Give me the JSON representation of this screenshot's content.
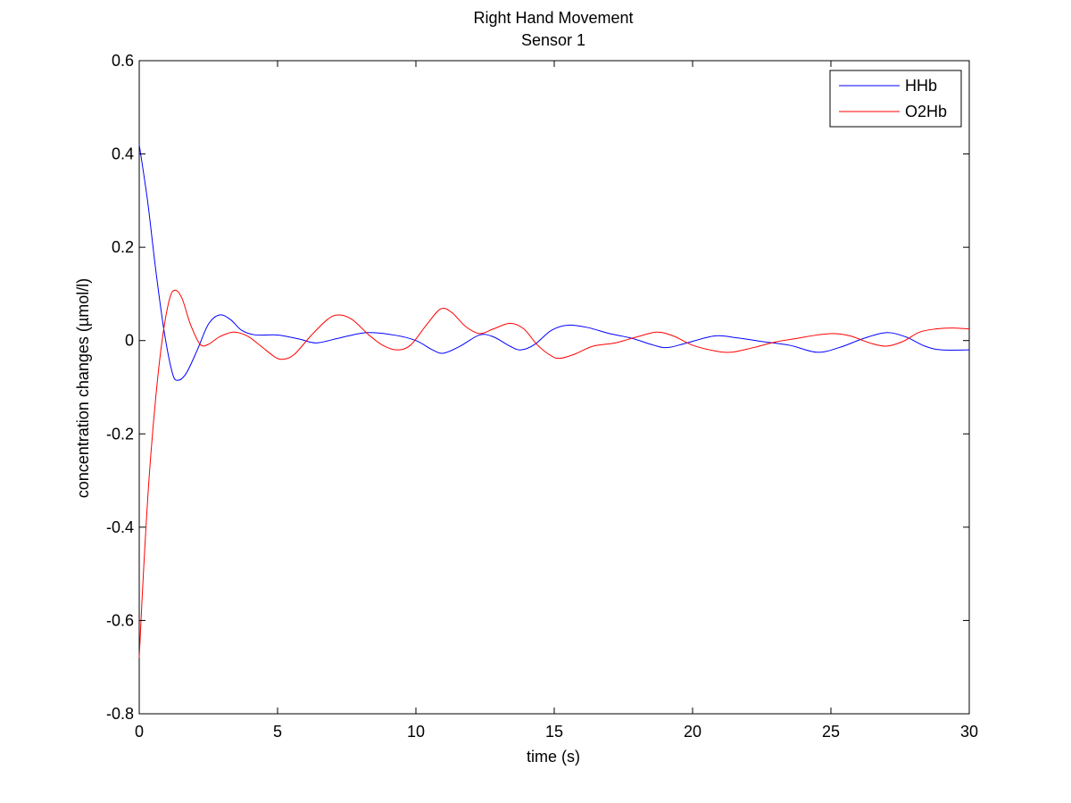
{
  "chart_data": {
    "type": "line",
    "title": "Right Hand Movement",
    "subtitle": "Sensor 1",
    "xlabel": "time (s)",
    "ylabel": "concentration changes (µmol/l)",
    "xlim": [
      0,
      30
    ],
    "ylim": [
      -0.8,
      0.6
    ],
    "x_ticks": [
      0,
      5,
      10,
      15,
      20,
      25,
      30
    ],
    "x_tick_labels": [
      "0",
      "5",
      "10",
      "15",
      "20",
      "25",
      "30"
    ],
    "y_ticks": [
      -0.8,
      -0.6,
      -0.4,
      -0.2,
      0,
      0.2,
      0.4,
      0.6
    ],
    "y_tick_labels": [
      "-0.8",
      "-0.6",
      "-0.4",
      "-0.2",
      "0",
      "0.2",
      "0.4",
      "0.6"
    ],
    "grid": false,
    "legend_position": "top-right",
    "series": [
      {
        "name": "HHb",
        "color": "#0000ff",
        "points": [
          [
            0,
            0.42
          ],
          [
            0.3,
            0.3
          ],
          [
            0.6,
            0.15
          ],
          [
            0.9,
            0.02
          ],
          [
            1.2,
            -0.07
          ],
          [
            1.4,
            -0.085
          ],
          [
            1.7,
            -0.07
          ],
          [
            2.1,
            -0.02
          ],
          [
            2.5,
            0.035
          ],
          [
            2.9,
            0.055
          ],
          [
            3.3,
            0.045
          ],
          [
            3.7,
            0.022
          ],
          [
            4.2,
            0.012
          ],
          [
            5,
            0.012
          ],
          [
            5.8,
            0.003
          ],
          [
            6.4,
            -0.005
          ],
          [
            7.2,
            0.005
          ],
          [
            8.2,
            0.017
          ],
          [
            9.2,
            0.012
          ],
          [
            10,
            0.0
          ],
          [
            10.6,
            -0.02
          ],
          [
            11,
            -0.027
          ],
          [
            11.6,
            -0.012
          ],
          [
            12.3,
            0.012
          ],
          [
            12.8,
            0.008
          ],
          [
            13.4,
            -0.012
          ],
          [
            13.8,
            -0.02
          ],
          [
            14.3,
            -0.008
          ],
          [
            14.9,
            0.022
          ],
          [
            15.5,
            0.033
          ],
          [
            16.2,
            0.028
          ],
          [
            17,
            0.015
          ],
          [
            17.8,
            0.005
          ],
          [
            18.6,
            -0.01
          ],
          [
            19.1,
            -0.015
          ],
          [
            19.8,
            -0.005
          ],
          [
            20.8,
            0.01
          ],
          [
            21.6,
            0.006
          ],
          [
            22.5,
            -0.002
          ],
          [
            23.5,
            -0.01
          ],
          [
            24.5,
            -0.025
          ],
          [
            25.3,
            -0.015
          ],
          [
            26.2,
            0.005
          ],
          [
            27,
            0.017
          ],
          [
            27.7,
            0.008
          ],
          [
            28.4,
            -0.012
          ],
          [
            29,
            -0.02
          ],
          [
            30,
            -0.02
          ]
        ]
      },
      {
        "name": "O2Hb",
        "color": "#ff0000",
        "points": [
          [
            0,
            -0.68
          ],
          [
            0.15,
            -0.5
          ],
          [
            0.35,
            -0.3
          ],
          [
            0.6,
            -0.12
          ],
          [
            0.85,
            0.01
          ],
          [
            1.1,
            0.09
          ],
          [
            1.3,
            0.108
          ],
          [
            1.55,
            0.09
          ],
          [
            1.85,
            0.035
          ],
          [
            2.2,
            -0.008
          ],
          [
            2.5,
            -0.008
          ],
          [
            2.9,
            0.008
          ],
          [
            3.4,
            0.018
          ],
          [
            3.9,
            0.01
          ],
          [
            4.4,
            -0.012
          ],
          [
            4.9,
            -0.035
          ],
          [
            5.2,
            -0.04
          ],
          [
            5.6,
            -0.03
          ],
          [
            6.2,
            0.01
          ],
          [
            6.8,
            0.045
          ],
          [
            7.2,
            0.055
          ],
          [
            7.7,
            0.045
          ],
          [
            8.3,
            0.012
          ],
          [
            8.8,
            -0.01
          ],
          [
            9.3,
            -0.02
          ],
          [
            9.8,
            -0.01
          ],
          [
            10.4,
            0.035
          ],
          [
            10.9,
            0.068
          ],
          [
            11.3,
            0.06
          ],
          [
            11.8,
            0.03
          ],
          [
            12.3,
            0.015
          ],
          [
            12.8,
            0.025
          ],
          [
            13.4,
            0.037
          ],
          [
            13.9,
            0.025
          ],
          [
            14.4,
            -0.01
          ],
          [
            14.9,
            -0.033
          ],
          [
            15.2,
            -0.038
          ],
          [
            15.7,
            -0.03
          ],
          [
            16.4,
            -0.012
          ],
          [
            17.2,
            -0.005
          ],
          [
            18,
            0.008
          ],
          [
            18.7,
            0.018
          ],
          [
            19.3,
            0.01
          ],
          [
            20,
            -0.01
          ],
          [
            20.8,
            -0.022
          ],
          [
            21.4,
            -0.025
          ],
          [
            22.2,
            -0.015
          ],
          [
            23,
            -0.003
          ],
          [
            23.8,
            0.005
          ],
          [
            24.5,
            0.012
          ],
          [
            25.1,
            0.015
          ],
          [
            25.7,
            0.01
          ],
          [
            26.4,
            -0.005
          ],
          [
            27,
            -0.012
          ],
          [
            27.6,
            -0.002
          ],
          [
            28.2,
            0.018
          ],
          [
            28.8,
            0.025
          ],
          [
            29.4,
            0.027
          ],
          [
            30,
            0.025
          ]
        ]
      }
    ]
  }
}
